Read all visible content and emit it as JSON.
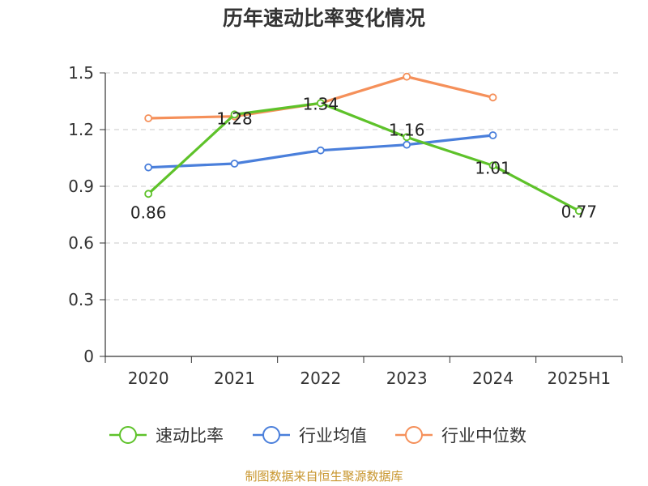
{
  "source_note": "制图数据来自恒生聚源数据库",
  "chart_data": {
    "type": "line",
    "title": "历年速动比率变化情况",
    "xlabel": "",
    "ylabel": "",
    "categories": [
      "2020",
      "2021",
      "2022",
      "2023",
      "2024",
      "2025H1"
    ],
    "ylim": [
      0,
      1.5
    ],
    "yticks": [
      0,
      0.3,
      0.6,
      0.9,
      1.2,
      1.5
    ],
    "ytick_labels": [
      "0",
      "0.3",
      "0.6",
      "0.9",
      "1.2",
      "1.5"
    ],
    "grid": true,
    "legend_position": "bottom",
    "series": [
      {
        "name": "速动比率",
        "color": "#5ec22a",
        "values": [
          0.86,
          1.28,
          1.34,
          1.16,
          1.01,
          0.77
        ],
        "labels": [
          "0.86",
          "1.28",
          "1.34",
          "1.16",
          "1.01",
          "0.77"
        ]
      },
      {
        "name": "行业均值",
        "color": "#4a7fdb",
        "values": [
          1.0,
          1.02,
          1.09,
          1.12,
          1.17,
          null
        ]
      },
      {
        "name": "行业中位数",
        "color": "#f5905a",
        "values": [
          1.26,
          1.27,
          1.34,
          1.48,
          1.37,
          null
        ]
      }
    ]
  }
}
